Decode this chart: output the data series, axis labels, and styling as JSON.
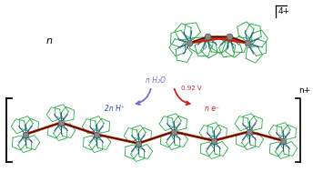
{
  "bg_color": "#ffffff",
  "fig_width": 3.44,
  "fig_height": 1.89,
  "dpi": 100,
  "top_label_n": "n",
  "top_label_charge": "4+",
  "bottom_label_charge": "n+",
  "arrow_label_water": "n H₂O",
  "arrow_label_voltage": "0.92 V",
  "arrow_label_protons": "2n H⁺",
  "arrow_label_electrons": "n e⁻",
  "water_color": "#8866cc",
  "voltage_color": "#cc2222",
  "proton_color": "#3344bb",
  "electron_color": "#cc2222",
  "green_ring_color": "#22aa44",
  "metal_color": "#888888",
  "metal_edge_color": "#444444",
  "red_bridge_color": "#cc2200",
  "blue_ligand_color": "#1a2aaa",
  "black_bond_color": "#111111",
  "bracket_color": "#111111"
}
